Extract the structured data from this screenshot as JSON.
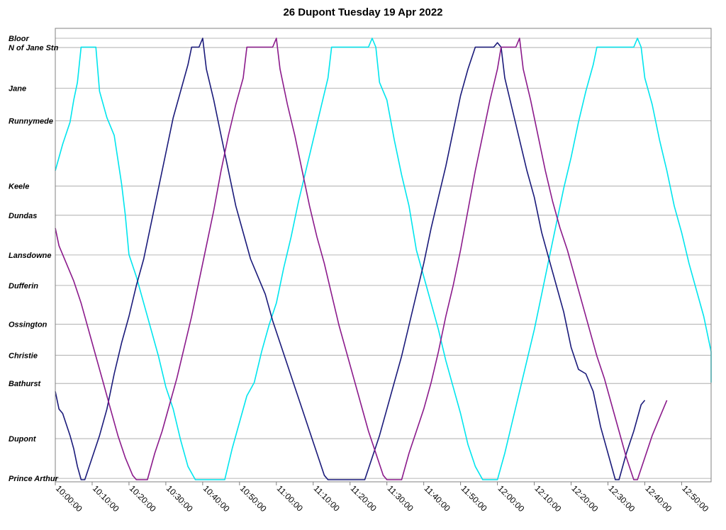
{
  "chart_data": {
    "type": "line",
    "title": "26 Dupont Tuesday 19 Apr 2022",
    "xlabel": "",
    "ylabel": "",
    "x_unit": "time of day",
    "xlim": [
      "10:00:00",
      "12:58:00"
    ],
    "x_ticks": [
      "10:00:00",
      "10:10:00",
      "10:20:00",
      "10:30:00",
      "10:40:00",
      "10:50:00",
      "11:00:00",
      "11:10:00",
      "11:20:00",
      "11:30:00",
      "11:40:00",
      "11:50:00",
      "12:00:00",
      "12:10:00",
      "12:20:00",
      "12:30:00",
      "12:40:00",
      "12:50:00"
    ],
    "stops": [
      {
        "name": "Bloor",
        "pos": 1.0
      },
      {
        "name": "N of Jane Stn",
        "pos": 0.979
      },
      {
        "name": "Jane",
        "pos": 0.887
      },
      {
        "name": "Runnymede",
        "pos": 0.813
      },
      {
        "name": "Keele",
        "pos": 0.665
      },
      {
        "name": "Dundas",
        "pos": 0.599
      },
      {
        "name": "Lansdowne",
        "pos": 0.509
      },
      {
        "name": "Dufferin",
        "pos": 0.44
      },
      {
        "name": "Ossington",
        "pos": 0.352
      },
      {
        "name": "Christie",
        "pos": 0.282
      },
      {
        "name": "Bathurst",
        "pos": 0.218
      },
      {
        "name": "Dupont",
        "pos": 0.093
      },
      {
        "name": "Prince Arthur",
        "pos": 0.003
      }
    ],
    "grid": true,
    "legend": "none",
    "series": [
      {
        "color": "#00e5ee",
        "points": [
          [
            "10:00:00",
            0.7
          ],
          [
            "10:02:00",
            0.76
          ],
          [
            "10:04:00",
            0.81
          ],
          [
            "10:05:00",
            0.86
          ],
          [
            "10:06:00",
            0.9
          ],
          [
            "10:07:00",
            0.98
          ],
          [
            "10:10:00",
            0.98
          ],
          [
            "10:11:00",
            0.98
          ],
          [
            "10:12:00",
            0.88
          ],
          [
            "10:14:00",
            0.82
          ],
          [
            "10:16:00",
            0.78
          ],
          [
            "10:18:00",
            0.67
          ],
          [
            "10:19:00",
            0.6
          ],
          [
            "10:20:00",
            0.51
          ],
          [
            "10:22:00",
            0.46
          ],
          [
            "10:24:00",
            0.4
          ],
          [
            "10:26:00",
            0.34
          ],
          [
            "10:28:00",
            0.28
          ],
          [
            "10:30:00",
            0.21
          ],
          [
            "10:32:00",
            0.16
          ],
          [
            "10:34:00",
            0.09
          ],
          [
            "10:36:00",
            0.03
          ],
          [
            "10:38:00",
            0.0
          ],
          [
            "10:46:00",
            0.0
          ],
          [
            "10:48:00",
            0.07
          ],
          [
            "10:50:00",
            0.13
          ],
          [
            "10:52:00",
            0.19
          ],
          [
            "10:54:00",
            0.22
          ],
          [
            "10:56:00",
            0.29
          ],
          [
            "10:58:00",
            0.35
          ],
          [
            "11:00:00",
            0.4
          ],
          [
            "11:02:00",
            0.48
          ],
          [
            "11:04:00",
            0.55
          ],
          [
            "11:06:00",
            0.63
          ],
          [
            "11:08:00",
            0.7
          ],
          [
            "11:10:00",
            0.77
          ],
          [
            "11:12:00",
            0.84
          ],
          [
            "11:14:00",
            0.91
          ],
          [
            "11:15:00",
            0.98
          ],
          [
            "11:25:00",
            0.98
          ],
          [
            "11:26:00",
            1.0
          ],
          [
            "11:27:00",
            0.98
          ],
          [
            "11:28:00",
            0.9
          ],
          [
            "11:30:00",
            0.86
          ],
          [
            "11:32:00",
            0.77
          ],
          [
            "11:34:00",
            0.69
          ],
          [
            "11:36:00",
            0.62
          ],
          [
            "11:38:00",
            0.52
          ],
          [
            "11:40:00",
            0.46
          ],
          [
            "11:42:00",
            0.4
          ],
          [
            "11:44:00",
            0.34
          ],
          [
            "11:46:00",
            0.27
          ],
          [
            "11:48:00",
            0.21
          ],
          [
            "11:50:00",
            0.15
          ],
          [
            "11:52:00",
            0.08
          ],
          [
            "11:54:00",
            0.03
          ],
          [
            "11:56:00",
            0.0
          ],
          [
            "12:00:00",
            0.0
          ],
          [
            "12:02:00",
            0.06
          ],
          [
            "12:04:00",
            0.13
          ],
          [
            "12:06:00",
            0.2
          ],
          [
            "12:08:00",
            0.27
          ],
          [
            "12:10:00",
            0.34
          ],
          [
            "12:12:00",
            0.42
          ],
          [
            "12:14:00",
            0.5
          ],
          [
            "12:16:00",
            0.58
          ],
          [
            "12:18:00",
            0.66
          ],
          [
            "12:20:00",
            0.73
          ],
          [
            "12:22:00",
            0.81
          ],
          [
            "12:24:00",
            0.88
          ],
          [
            "12:26:00",
            0.94
          ],
          [
            "12:27:00",
            0.98
          ],
          [
            "12:37:00",
            0.98
          ],
          [
            "12:38:00",
            1.0
          ],
          [
            "12:39:00",
            0.98
          ],
          [
            "12:40:00",
            0.91
          ],
          [
            "12:42:00",
            0.85
          ],
          [
            "12:44:00",
            0.77
          ],
          [
            "12:46:00",
            0.7
          ],
          [
            "12:48:00",
            0.62
          ],
          [
            "12:50:00",
            0.56
          ],
          [
            "12:52:00",
            0.49
          ],
          [
            "12:54:00",
            0.43
          ],
          [
            "12:56:00",
            0.37
          ],
          [
            "12:58:00",
            0.29
          ],
          [
            "13:00:00",
            0.23
          ],
          [
            "13:02:00",
            0.22
          ]
        ]
      },
      {
        "color": "#1a1a7a",
        "points": [
          [
            "10:00:00",
            0.2
          ],
          [
            "10:01:00",
            0.16
          ],
          [
            "10:02:00",
            0.15
          ],
          [
            "10:04:00",
            0.1
          ],
          [
            "10:05:00",
            0.07
          ],
          [
            "10:06:00",
            0.03
          ],
          [
            "10:07:00",
            0.0
          ],
          [
            "10:08:00",
            0.0
          ],
          [
            "10:10:00",
            0.05
          ],
          [
            "10:12:00",
            0.1
          ],
          [
            "10:14:00",
            0.16
          ],
          [
            "10:16:00",
            0.24
          ],
          [
            "10:18:00",
            0.31
          ],
          [
            "10:20:00",
            0.37
          ],
          [
            "10:22:00",
            0.44
          ],
          [
            "10:24:00",
            0.5
          ],
          [
            "10:26:00",
            0.58
          ],
          [
            "10:28:00",
            0.66
          ],
          [
            "10:30:00",
            0.74
          ],
          [
            "10:32:00",
            0.82
          ],
          [
            "10:34:00",
            0.88
          ],
          [
            "10:36:00",
            0.94
          ],
          [
            "10:37:00",
            0.98
          ],
          [
            "10:39:00",
            0.98
          ],
          [
            "10:40:00",
            1.0
          ],
          [
            "10:41:00",
            0.93
          ],
          [
            "10:43:00",
            0.86
          ],
          [
            "10:45:00",
            0.78
          ],
          [
            "10:47:00",
            0.7
          ],
          [
            "10:49:00",
            0.62
          ],
          [
            "10:51:00",
            0.56
          ],
          [
            "10:53:00",
            0.5
          ],
          [
            "10:55:00",
            0.46
          ],
          [
            "10:57:00",
            0.42
          ],
          [
            "10:59:00",
            0.36
          ],
          [
            "11:01:00",
            0.31
          ],
          [
            "11:03:00",
            0.26
          ],
          [
            "11:05:00",
            0.21
          ],
          [
            "11:07:00",
            0.16
          ],
          [
            "11:09:00",
            0.11
          ],
          [
            "11:11:00",
            0.06
          ],
          [
            "11:13:00",
            0.01
          ],
          [
            "11:14:00",
            0.0
          ],
          [
            "11:24:00",
            0.0
          ],
          [
            "11:26:00",
            0.05
          ],
          [
            "11:28:00",
            0.1
          ],
          [
            "11:30:00",
            0.16
          ],
          [
            "11:32:00",
            0.22
          ],
          [
            "11:34:00",
            0.28
          ],
          [
            "11:36:00",
            0.35
          ],
          [
            "11:38:00",
            0.42
          ],
          [
            "11:40:00",
            0.49
          ],
          [
            "11:42:00",
            0.57
          ],
          [
            "11:44:00",
            0.64
          ],
          [
            "11:46:00",
            0.71
          ],
          [
            "11:48:00",
            0.79
          ],
          [
            "11:50:00",
            0.87
          ],
          [
            "11:52:00",
            0.93
          ],
          [
            "11:54:00",
            0.98
          ],
          [
            "11:59:00",
            0.98
          ],
          [
            "12:00:00",
            0.99
          ],
          [
            "12:01:00",
            0.98
          ],
          [
            "12:02:00",
            0.91
          ],
          [
            "12:04:00",
            0.84
          ],
          [
            "12:06:00",
            0.77
          ],
          [
            "12:08:00",
            0.7
          ],
          [
            "12:10:00",
            0.64
          ],
          [
            "12:12:00",
            0.56
          ],
          [
            "12:14:00",
            0.5
          ],
          [
            "12:16:00",
            0.44
          ],
          [
            "12:18:00",
            0.38
          ],
          [
            "12:20:00",
            0.3
          ],
          [
            "12:22:00",
            0.25
          ],
          [
            "12:24:00",
            0.24
          ],
          [
            "12:26:00",
            0.2
          ],
          [
            "12:28:00",
            0.12
          ],
          [
            "12:30:00",
            0.06
          ],
          [
            "12:32:00",
            0.0
          ],
          [
            "12:33:00",
            0.0
          ],
          [
            "12:35:00",
            0.06
          ],
          [
            "12:37:00",
            0.11
          ],
          [
            "12:39:00",
            0.17
          ],
          [
            "12:40:00",
            0.18
          ]
        ]
      },
      {
        "color": "#8b1a8b",
        "points": [
          [
            "10:00:00",
            0.57
          ],
          [
            "10:01:00",
            0.53
          ],
          [
            "10:03:00",
            0.49
          ],
          [
            "10:05:00",
            0.45
          ],
          [
            "10:07:00",
            0.4
          ],
          [
            "10:09:00",
            0.34
          ],
          [
            "10:11:00",
            0.28
          ],
          [
            "10:13:00",
            0.22
          ],
          [
            "10:15:00",
            0.16
          ],
          [
            "10:17:00",
            0.1
          ],
          [
            "10:19:00",
            0.05
          ],
          [
            "10:21:00",
            0.01
          ],
          [
            "10:22:00",
            0.0
          ],
          [
            "10:25:00",
            0.0
          ],
          [
            "10:27:00",
            0.06
          ],
          [
            "10:29:00",
            0.11
          ],
          [
            "10:31:00",
            0.17
          ],
          [
            "10:33:00",
            0.23
          ],
          [
            "10:35:00",
            0.3
          ],
          [
            "10:37:00",
            0.37
          ],
          [
            "10:39:00",
            0.45
          ],
          [
            "10:41:00",
            0.53
          ],
          [
            "10:43:00",
            0.61
          ],
          [
            "10:45:00",
            0.7
          ],
          [
            "10:47:00",
            0.78
          ],
          [
            "10:49:00",
            0.85
          ],
          [
            "10:51:00",
            0.91
          ],
          [
            "10:52:00",
            0.98
          ],
          [
            "10:59:00",
            0.98
          ],
          [
            "11:00:00",
            1.0
          ],
          [
            "11:01:00",
            0.93
          ],
          [
            "11:03:00",
            0.85
          ],
          [
            "11:05:00",
            0.78
          ],
          [
            "11:07:00",
            0.7
          ],
          [
            "11:09:00",
            0.62
          ],
          [
            "11:11:00",
            0.55
          ],
          [
            "11:13:00",
            0.49
          ],
          [
            "11:15:00",
            0.42
          ],
          [
            "11:17:00",
            0.35
          ],
          [
            "11:19:00",
            0.29
          ],
          [
            "11:21:00",
            0.23
          ],
          [
            "11:23:00",
            0.17
          ],
          [
            "11:25:00",
            0.11
          ],
          [
            "11:27:00",
            0.06
          ],
          [
            "11:29:00",
            0.01
          ],
          [
            "11:30:00",
            0.0
          ],
          [
            "11:34:00",
            0.0
          ],
          [
            "11:36:00",
            0.06
          ],
          [
            "11:38:00",
            0.11
          ],
          [
            "11:40:00",
            0.16
          ],
          [
            "11:42:00",
            0.22
          ],
          [
            "11:44:00",
            0.29
          ],
          [
            "11:46:00",
            0.37
          ],
          [
            "11:48:00",
            0.44
          ],
          [
            "11:50:00",
            0.52
          ],
          [
            "11:52:00",
            0.61
          ],
          [
            "11:54:00",
            0.7
          ],
          [
            "11:56:00",
            0.78
          ],
          [
            "11:58:00",
            0.86
          ],
          [
            "12:00:00",
            0.93
          ],
          [
            "12:01:00",
            0.98
          ],
          [
            "12:05:00",
            0.98
          ],
          [
            "12:06:00",
            1.0
          ],
          [
            "12:07:00",
            0.93
          ],
          [
            "12:09:00",
            0.86
          ],
          [
            "12:11:00",
            0.78
          ],
          [
            "12:13:00",
            0.7
          ],
          [
            "12:15:00",
            0.63
          ],
          [
            "12:17:00",
            0.57
          ],
          [
            "12:19:00",
            0.52
          ],
          [
            "12:21:00",
            0.46
          ],
          [
            "12:23:00",
            0.4
          ],
          [
            "12:25:00",
            0.34
          ],
          [
            "12:27:00",
            0.28
          ],
          [
            "12:29:00",
            0.23
          ],
          [
            "12:31:00",
            0.17
          ],
          [
            "12:33:00",
            0.11
          ],
          [
            "12:35:00",
            0.05
          ],
          [
            "12:37:00",
            0.0
          ],
          [
            "12:38:00",
            0.0
          ],
          [
            "12:40:00",
            0.05
          ],
          [
            "12:42:00",
            0.1
          ],
          [
            "12:44:00",
            0.14
          ],
          [
            "12:46:00",
            0.18
          ]
        ]
      }
    ]
  }
}
